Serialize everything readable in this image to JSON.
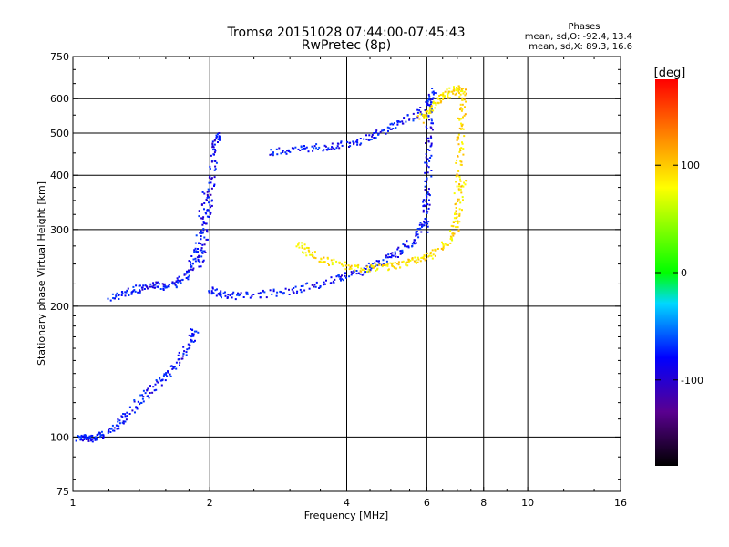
{
  "chart_data": {
    "type": "scatter",
    "title": "Tromsø 20151028 07:44:00-07:45:43",
    "subtitle": "RwPretec (8p)",
    "xlabel": "Frequency [MHz]",
    "ylabel": "Stationary phase Virtual Height [km]",
    "x_scale": "log",
    "y_scale": "log",
    "xlim": [
      1,
      16
    ],
    "ylim": [
      75,
      750
    ],
    "x_ticks": [
      {
        "value": 1,
        "label": "1"
      },
      {
        "value": 2,
        "label": "2"
      },
      {
        "value": 4,
        "label": "4"
      },
      {
        "value": 6,
        "label": "6"
      },
      {
        "value": 8,
        "label": "8"
      },
      {
        "value": 10,
        "label": "10"
      },
      {
        "value": 16,
        "label": "16"
      }
    ],
    "x_gridlines": [
      2,
      4,
      6,
      8,
      10
    ],
    "y_ticks": [
      {
        "value": 75,
        "label": "75"
      },
      {
        "value": 100,
        "label": "100"
      },
      {
        "value": 200,
        "label": "200"
      },
      {
        "value": 300,
        "label": "300"
      },
      {
        "value": 400,
        "label": "400"
      },
      {
        "value": 500,
        "label": "500"
      },
      {
        "value": 600,
        "label": "600"
      },
      {
        "value": 750,
        "label": "750"
      }
    ],
    "y_gridlines": [
      100,
      200,
      300,
      400,
      500,
      600
    ],
    "grid": true,
    "phase_header": "Phases",
    "phase_stats": [
      "mean, sd,O: -92.4, 13.4",
      "mean, sd,X:  89.3, 16.6"
    ],
    "colorbar": {
      "unit": "[deg]",
      "range": [
        -180,
        180
      ],
      "ticks": [
        {
          "value": 100,
          "label": "100"
        },
        {
          "value": 0,
          "label": "0"
        },
        {
          "value": -100,
          "label": "-100"
        }
      ],
      "colormap": "rainbow: black (-180) → violet → blue (-100) → cyan → green (0) → yellow (100) → red (180)"
    },
    "traces": [
      {
        "kind": "O-mode E/F1 low",
        "phase": -95,
        "x": [
          1.02,
          1.06,
          1.1,
          1.15,
          1.22,
          1.3,
          1.4,
          1.5,
          1.6,
          1.7,
          1.8,
          1.85
        ],
        "y": [
          100,
          100,
          100,
          101,
          105,
          112,
          122,
          130,
          140,
          150,
          165,
          180
        ]
      },
      {
        "kind": "O-mode F1 trace",
        "phase": -95,
        "x": [
          1.2,
          1.3,
          1.4,
          1.5,
          1.6,
          1.7,
          1.78,
          1.85,
          1.9,
          1.95
        ],
        "y": [
          210,
          215,
          220,
          225,
          222,
          228,
          240,
          260,
          300,
          380
        ]
      },
      {
        "kind": "O-mode cusp column",
        "phase": -100,
        "x": [
          1.9,
          1.93,
          1.96,
          2.0,
          2.02,
          2.05,
          2.08
        ],
        "y": [
          250,
          280,
          320,
          360,
          420,
          480,
          500
        ]
      },
      {
        "kind": "O-mode F2 trace",
        "phase": -95,
        "x": [
          2.0,
          2.1,
          2.3,
          2.6,
          3.0,
          3.4,
          3.8,
          4.2,
          4.6,
          5.0,
          5.4,
          5.7,
          5.9,
          6.0
        ],
        "y": [
          220,
          214,
          212,
          214,
          218,
          224,
          232,
          240,
          250,
          262,
          275,
          290,
          320,
          370
        ]
      },
      {
        "kind": "O-mode critical column",
        "phase": -100,
        "x": [
          5.95,
          6.0,
          6.02,
          6.05,
          6.08
        ],
        "y": [
          300,
          380,
          450,
          520,
          600
        ]
      },
      {
        "kind": "O-mode upper branch",
        "phase": -95,
        "x": [
          2.7,
          3.0,
          3.4,
          3.8,
          4.2,
          4.6,
          5.0,
          5.5,
          6.0,
          6.2
        ],
        "y": [
          455,
          460,
          465,
          470,
          480,
          500,
          520,
          545,
          590,
          630
        ]
      },
      {
        "kind": "X-mode F2 trace",
        "phase": 90,
        "x": [
          3.1,
          3.3,
          3.6,
          4.0,
          4.4,
          4.8,
          5.2,
          5.6,
          6.0,
          6.4,
          6.8,
          7.0,
          7.2
        ],
        "y": [
          280,
          265,
          255,
          248,
          245,
          247,
          250,
          255,
          262,
          272,
          290,
          330,
          400
        ]
      },
      {
        "kind": "X-mode critical column",
        "phase": 95,
        "x": [
          6.9,
          7.0,
          7.05,
          7.1,
          7.15,
          7.2
        ],
        "y": [
          300,
          380,
          450,
          520,
          580,
          640
        ]
      },
      {
        "kind": "X-mode upper branch",
        "phase": 90,
        "x": [
          5.8,
          6.0,
          6.3,
          6.6,
          6.9,
          7.1
        ],
        "y": [
          540,
          560,
          590,
          615,
          630,
          640
        ]
      }
    ]
  }
}
